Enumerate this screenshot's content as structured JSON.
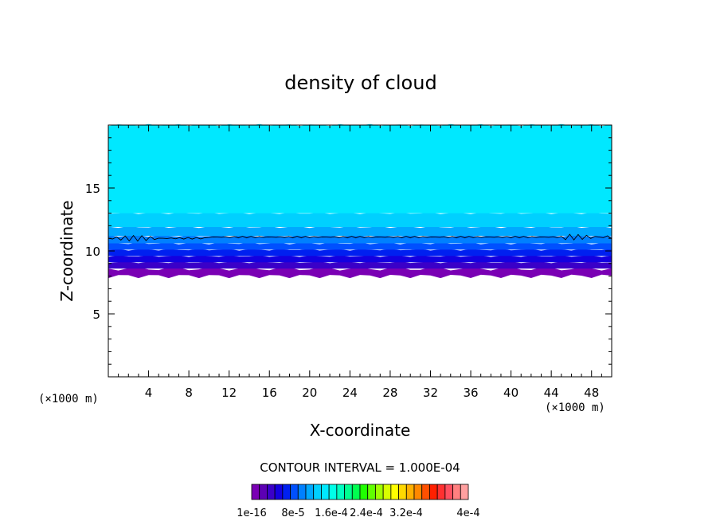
{
  "chart_data": {
    "type": "heatmap",
    "title": "density of cloud",
    "xlabel": "X-coordinate",
    "ylabel": "Z-coordinate",
    "x_units_left": "(×1000 m)",
    "x_units_right": "(×1000 m)",
    "xlim": [
      0,
      50
    ],
    "ylim": [
      0,
      20
    ],
    "x_ticks": [
      4,
      8,
      12,
      16,
      20,
      24,
      28,
      32,
      36,
      40,
      44,
      48
    ],
    "y_ticks": [
      5,
      10,
      15
    ],
    "contour_interval_text": "CONTOUR INTERVAL = 1.000E-04",
    "colorbar_labels": [
      "1e-16",
      "8e-5",
      "1.6e-4",
      "2.4e-4",
      "3.2e-4",
      "4e-4"
    ],
    "colorbar_values": [
      1e-16,
      8e-05,
      0.00016,
      0.00024,
      0.00032,
      0.0004
    ],
    "colorbar_colors": [
      "#7a00b4",
      "#5c00b4",
      "#3a00c8",
      "#1400e0",
      "#0020f0",
      "#0050ff",
      "#0080ff",
      "#00a8ff",
      "#00d0ff",
      "#00e8ff",
      "#00ffe8",
      "#00ffc0",
      "#00ff90",
      "#00ff50",
      "#20ff00",
      "#60ff00",
      "#a0ff00",
      "#d8ff00",
      "#ffff00",
      "#ffd800",
      "#ffb000",
      "#ff8800",
      "#ff5000",
      "#ff2000",
      "#ff3030",
      "#ff5060",
      "#ff8080",
      "#ffa0a0"
    ],
    "layers": [
      {
        "z_bottom": 8.0,
        "z_top": 8.6,
        "color": "#7a00b4"
      },
      {
        "z_bottom": 8.6,
        "z_top": 9.1,
        "color": "#3a00c8"
      },
      {
        "z_bottom": 9.1,
        "z_top": 9.6,
        "color": "#1400e0"
      },
      {
        "z_bottom": 9.6,
        "z_top": 10.1,
        "color": "#0020f0"
      },
      {
        "z_bottom": 10.1,
        "z_top": 10.6,
        "color": "#0050ff"
      },
      {
        "z_bottom": 10.6,
        "z_top": 11.2,
        "color": "#0080ff"
      },
      {
        "z_bottom": 11.2,
        "z_top": 11.9,
        "color": "#00a8ff"
      },
      {
        "z_bottom": 11.9,
        "z_top": 13.0,
        "color": "#00d0ff"
      },
      {
        "z_bottom": 13.0,
        "z_top": 20.0,
        "color": "#00e8ff"
      }
    ],
    "contour_line_z": 11.1
  }
}
